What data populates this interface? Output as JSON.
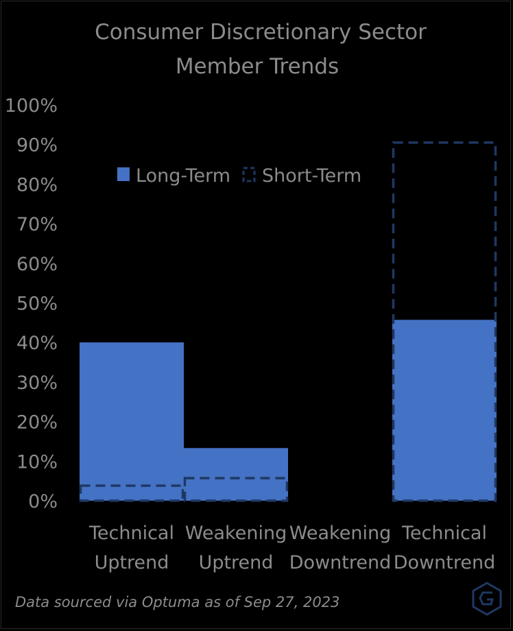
{
  "chart_data": {
    "type": "bar",
    "title": [
      "Consumer Discretionary Sector",
      "Member Trends"
    ],
    "categories": [
      [
        "Technical",
        "Uptrend"
      ],
      [
        "Weakening",
        "Uptrend"
      ],
      [
        "Weakening",
        "Downtrend"
      ],
      [
        "Technical",
        "Downtrend"
      ]
    ],
    "series": [
      {
        "name": "Long-Term",
        "values": [
          40,
          13.3,
          0,
          45.7
        ],
        "style": "filled",
        "color": "#4472c4"
      },
      {
        "name": "Short-Term",
        "values": [
          3.8,
          5.7,
          0,
          90.5
        ],
        "style": "dashed-outline",
        "color": "#1f3864"
      }
    ],
    "ylim": [
      0,
      100
    ],
    "yticks": [
      "0%",
      "10%",
      "20%",
      "30%",
      "40%",
      "50%",
      "60%",
      "70%",
      "80%",
      "90%",
      "100%"
    ],
    "legend_position": "top-center",
    "grid": false,
    "background": "#000000",
    "logo_icon": "hexagon-g-logo-icon"
  },
  "source_note": "Data sourced via Optuma as of Sep 27, 2023"
}
